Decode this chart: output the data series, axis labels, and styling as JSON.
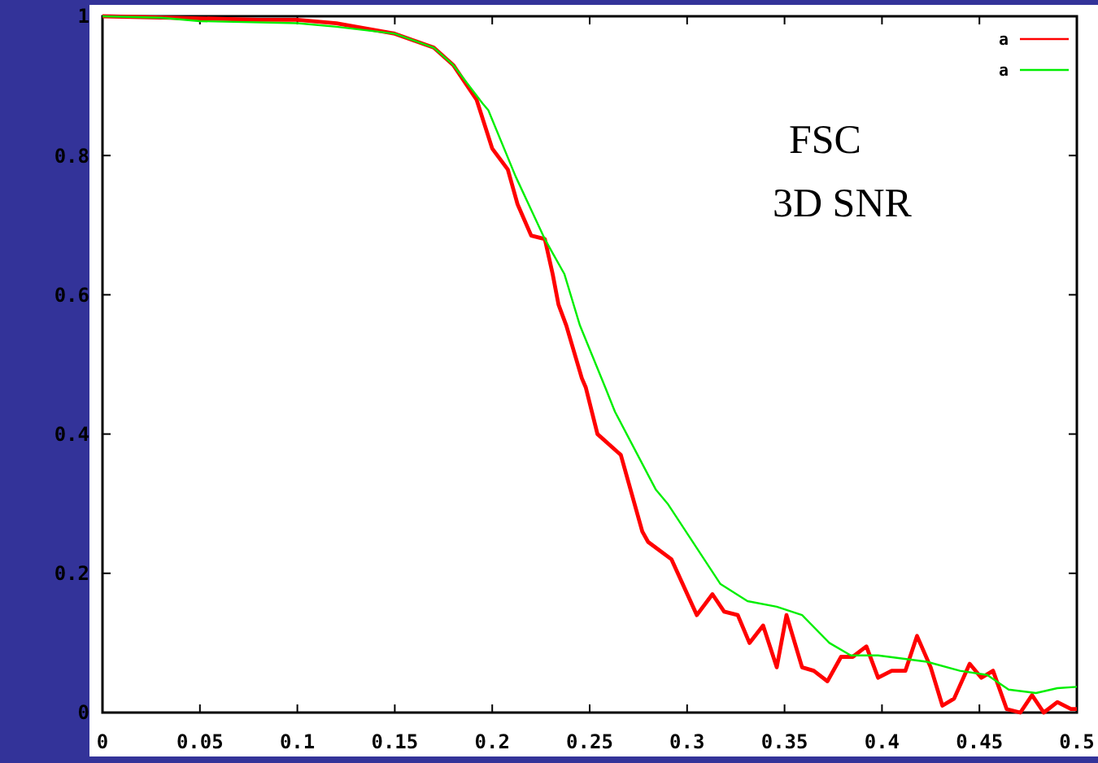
{
  "chart_data": {
    "type": "line",
    "annotations": [
      "FSC",
      "3D SNR"
    ],
    "xlim": [
      0,
      0.5
    ],
    "ylim": [
      0,
      1
    ],
    "xticks": [
      0,
      0.05,
      0.1,
      0.15,
      0.2,
      0.25,
      0.3,
      0.35,
      0.4,
      0.45,
      0.5
    ],
    "yticks": [
      0,
      0.2,
      0.4,
      0.6,
      0.8,
      1
    ],
    "grid": false,
    "legend": "top right",
    "line_style": "solid",
    "series": [
      {
        "name": "a",
        "color": "#ff0000",
        "x": [
          0,
          0.05,
          0.08,
          0.1,
          0.12,
          0.15,
          0.17,
          0.18,
          0.192,
          0.2,
          0.208,
          0.213,
          0.22,
          0.227,
          0.231,
          0.234,
          0.238,
          0.246,
          0.248,
          0.254,
          0.266,
          0.277,
          0.28,
          0.292,
          0.305,
          0.313,
          0.319,
          0.326,
          0.332,
          0.339,
          0.346,
          0.351,
          0.359,
          0.365,
          0.372,
          0.379,
          0.385,
          0.392,
          0.398,
          0.405,
          0.412,
          0.418,
          0.425,
          0.431,
          0.437,
          0.445,
          0.451,
          0.457,
          0.464,
          0.471,
          0.477,
          0.483,
          0.49,
          0.497,
          0.5
        ],
        "values": [
          1,
          0.997,
          0.995,
          0.995,
          0.99,
          0.975,
          0.955,
          0.93,
          0.88,
          0.81,
          0.78,
          0.73,
          0.685,
          0.68,
          0.63,
          0.586,
          0.556,
          0.48,
          0.467,
          0.4,
          0.37,
          0.26,
          0.245,
          0.22,
          0.14,
          0.17,
          0.145,
          0.14,
          0.1,
          0.125,
          0.065,
          0.14,
          0.065,
          0.06,
          0.045,
          0.08,
          0.08,
          0.095,
          0.05,
          0.06,
          0.06,
          0.11,
          0.065,
          0.01,
          0.02,
          0.07,
          0.05,
          0.06,
          0.005,
          0,
          0.025,
          0,
          0.015,
          0.005,
          0.005
        ]
      },
      {
        "name": "a",
        "color": "#00ee00",
        "x": [
          0,
          0.03,
          0.05,
          0.1,
          0.12,
          0.15,
          0.17,
          0.18,
          0.195,
          0.198,
          0.212,
          0.227,
          0.231,
          0.237,
          0.245,
          0.258,
          0.263,
          0.284,
          0.29,
          0.317,
          0.331,
          0.346,
          0.359,
          0.373,
          0.384,
          0.398,
          0.423,
          0.44,
          0.454,
          0.465,
          0.479,
          0.49,
          0.5
        ],
        "values": [
          1,
          0.998,
          0.993,
          0.99,
          0.985,
          0.975,
          0.955,
          0.93,
          0.875,
          0.865,
          0.77,
          0.68,
          0.66,
          0.63,
          0.556,
          0.467,
          0.432,
          0.32,
          0.3,
          0.185,
          0.16,
          0.152,
          0.14,
          0.1,
          0.082,
          0.082,
          0.073,
          0.06,
          0.054,
          0.033,
          0.028,
          0.035,
          0.037
        ]
      }
    ]
  }
}
